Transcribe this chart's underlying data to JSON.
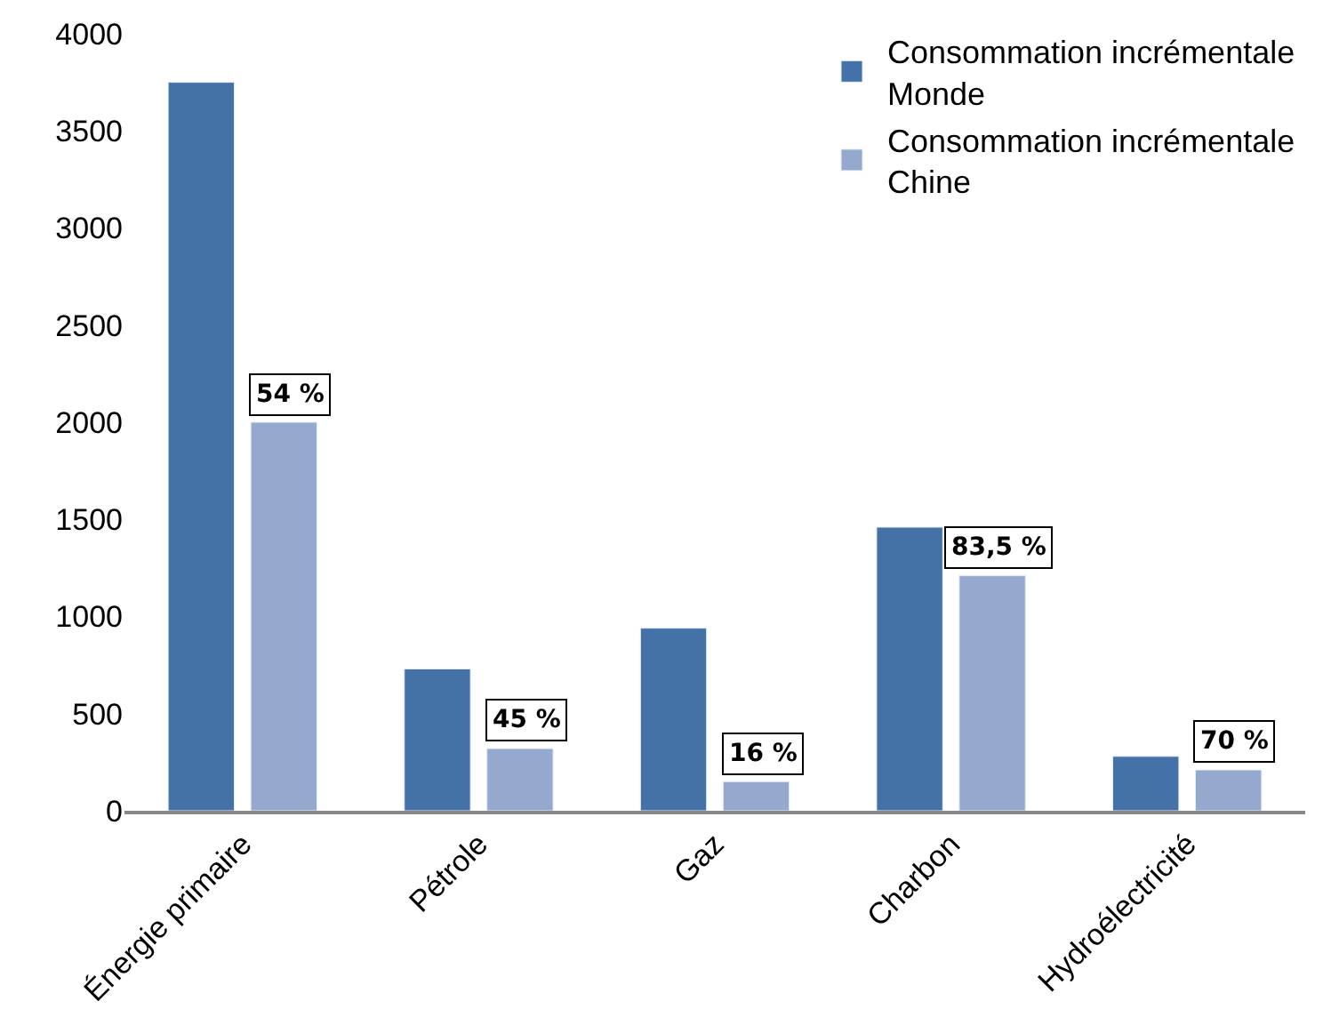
{
  "chart_data": {
    "type": "bar",
    "categories": [
      "Énergie primaire",
      "Pétrole",
      "Gaz",
      "Charbon",
      "Hydroélectricité"
    ],
    "series": [
      {
        "name": "Consommation incrémentale Monde",
        "color": "#4472a8",
        "values": [
          3750,
          730,
          940,
          1460,
          280
        ]
      },
      {
        "name": "Consommation incrémentale Chine",
        "color": "#95a9cf",
        "values": [
          2000,
          320,
          150,
          1210,
          210
        ]
      }
    ],
    "annotations": [
      {
        "text": "54 %",
        "x": "Énergie primaire",
        "y": 2000
      },
      {
        "text": "45 %",
        "x": "Pétrole",
        "y": 320
      },
      {
        "text": "16 %",
        "x": "Gaz",
        "y": 150
      },
      {
        "text": "83,5 %",
        "x": "Charbon",
        "y": 1210
      },
      {
        "text": "70 %",
        "x": "Hydroélectricité",
        "y": 210
      }
    ],
    "ylim": [
      0,
      4000
    ],
    "yticks": [
      0,
      500,
      1000,
      1500,
      2000,
      2500,
      3000,
      3500,
      4000
    ],
    "legend": "top right"
  }
}
